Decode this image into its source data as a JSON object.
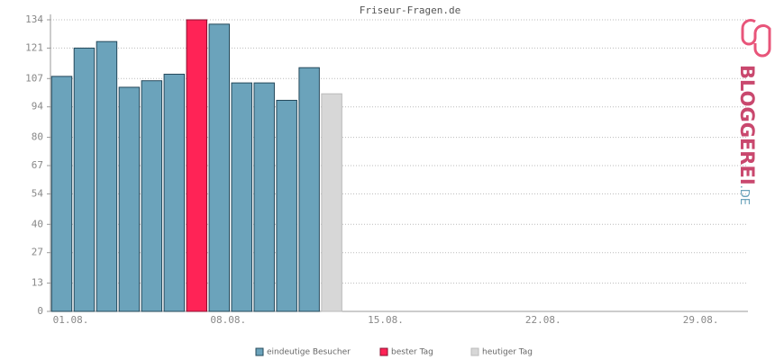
{
  "chart_data": {
    "type": "bar",
    "title": "Friseur-Fragen.de",
    "categories": [
      "01.08.",
      null,
      null,
      null,
      null,
      null,
      null,
      "08.08.",
      null,
      null,
      null,
      null,
      null,
      null,
      "15.08.",
      null,
      null,
      null,
      null,
      null,
      null,
      "22.08.",
      null,
      null,
      null,
      null,
      null,
      null,
      "29.08.",
      null,
      null
    ],
    "series": [
      {
        "name": "eindeutige Besucher",
        "color": "#6ba3bb",
        "values": [
          108,
          121,
          124,
          103,
          106,
          109,
          null,
          132,
          105,
          105,
          97,
          112,
          null,
          null,
          null,
          null,
          null,
          null,
          null,
          null,
          null,
          null,
          null,
          null,
          null,
          null,
          null,
          null,
          null,
          null,
          null
        ]
      },
      {
        "name": "bester Tag",
        "color": "#ff2356",
        "values": [
          null,
          null,
          null,
          null,
          null,
          null,
          134,
          null,
          null,
          null,
          null,
          null,
          null,
          null,
          null,
          null,
          null,
          null,
          null,
          null,
          null,
          null,
          null,
          null,
          null,
          null,
          null,
          null,
          null,
          null,
          null
        ]
      },
      {
        "name": "heutiger Tag",
        "color": "#d7d7d7",
        "values": [
          null,
          null,
          null,
          null,
          null,
          null,
          null,
          null,
          null,
          null,
          null,
          null,
          100,
          null,
          null,
          null,
          null,
          null,
          null,
          null,
          null,
          null,
          null,
          null,
          null,
          null,
          null,
          null,
          null,
          null,
          null
        ]
      }
    ],
    "ylim": [
      0,
      134
    ],
    "yticks": [
      0,
      13,
      27,
      40,
      54,
      67,
      80,
      94,
      107,
      121,
      134
    ],
    "grid": true
  },
  "logo": {
    "text": "BLOGGEREI",
    "suffix": ".DE"
  }
}
